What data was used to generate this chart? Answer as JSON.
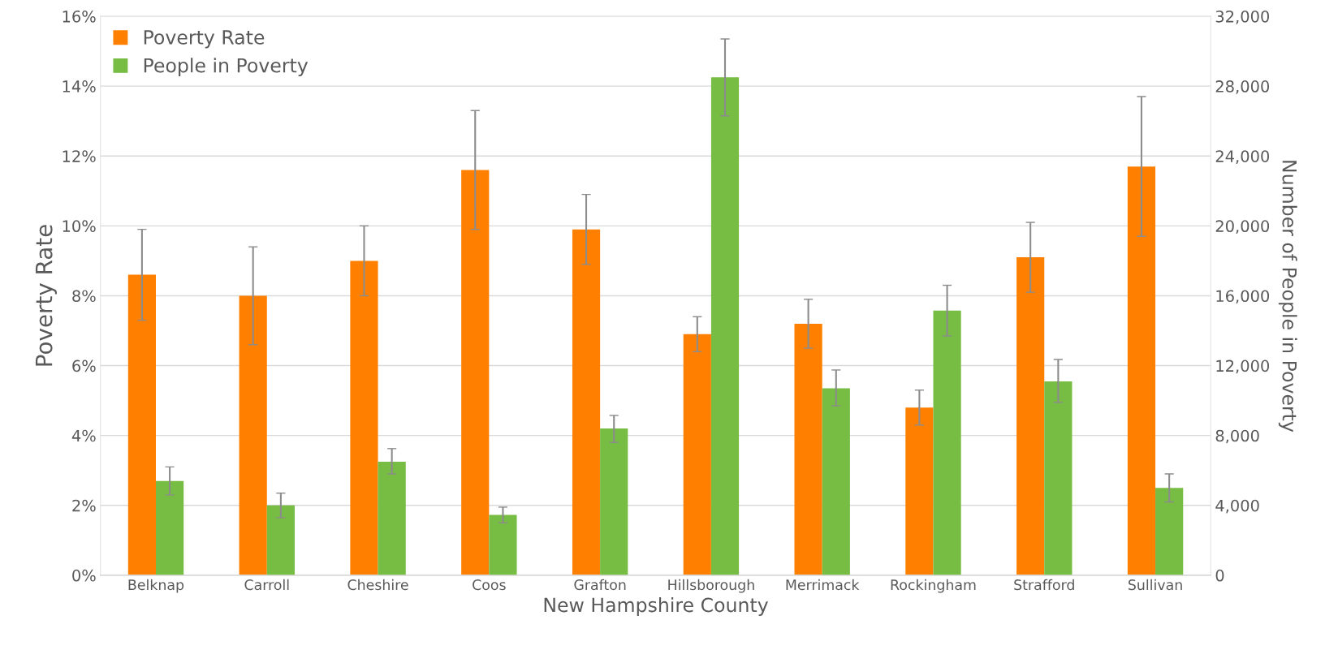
{
  "chart_data": {
    "type": "bar",
    "xlabel": "New Hampshire County",
    "ylabel": "Poverty Rate",
    "y2label": "Number of People in Poverty",
    "categories": [
      "Belknap",
      "Carroll",
      "Cheshire",
      "Coos",
      "Grafton",
      "Hillsborough",
      "Merrimack",
      "Rockingham",
      "Strafford",
      "Sullivan"
    ],
    "series": [
      {
        "name": "Poverty Rate",
        "color": "#ff8000",
        "values": [
          8.6,
          8.0,
          9.0,
          11.6,
          9.9,
          6.9,
          7.2,
          4.8,
          9.1,
          11.7
        ],
        "errors": [
          [
            7.3,
            9.9
          ],
          [
            6.6,
            9.4
          ],
          [
            8.0,
            10.0
          ],
          [
            9.9,
            13.3
          ],
          [
            8.9,
            10.9
          ],
          [
            6.4,
            7.4
          ],
          [
            6.5,
            7.9
          ],
          [
            4.3,
            5.3
          ],
          [
            8.1,
            10.1
          ],
          [
            9.7,
            13.7
          ]
        ]
      },
      {
        "name": "People in Poverty",
        "color": "#77bc43",
        "axis": "y2",
        "values": [
          5400,
          4000,
          6500,
          3450,
          8400,
          28500,
          10700,
          15150,
          11100,
          5000
        ],
        "errors": [
          [
            4600,
            6200
          ],
          [
            3300,
            4700
          ],
          [
            5800,
            7250
          ],
          [
            3000,
            3900
          ],
          [
            7600,
            9150
          ],
          [
            26300,
            30700
          ],
          [
            9700,
            11750
          ],
          [
            13700,
            16600
          ],
          [
            9900,
            12350
          ],
          [
            4200,
            5800
          ]
        ]
      }
    ],
    "ylim": [
      0,
      16
    ],
    "yticks": [
      {
        "value": 0,
        "label": "0%"
      },
      {
        "value": 2,
        "label": "2%"
      },
      {
        "value": 4,
        "label": "4%"
      },
      {
        "value": 6,
        "label": "6%"
      },
      {
        "value": 8,
        "label": "8%"
      },
      {
        "value": 10,
        "label": "10%"
      },
      {
        "value": 12,
        "label": "12%"
      },
      {
        "value": 14,
        "label": "14%"
      },
      {
        "value": 16,
        "label": "16%"
      }
    ],
    "y2lim": [
      0,
      32000
    ],
    "y2ticks": [
      {
        "value": 0,
        "label": "0"
      },
      {
        "value": 4000,
        "label": "4,000"
      },
      {
        "value": 8000,
        "label": "8,000"
      },
      {
        "value": 12000,
        "label": "12,000"
      },
      {
        "value": 16000,
        "label": "16,000"
      },
      {
        "value": 20000,
        "label": "20,000"
      },
      {
        "value": 24000,
        "label": "24,000"
      },
      {
        "value": 28000,
        "label": "28,000"
      },
      {
        "value": 32000,
        "label": "32,000"
      }
    ],
    "grid": "y",
    "legend": "top left"
  }
}
